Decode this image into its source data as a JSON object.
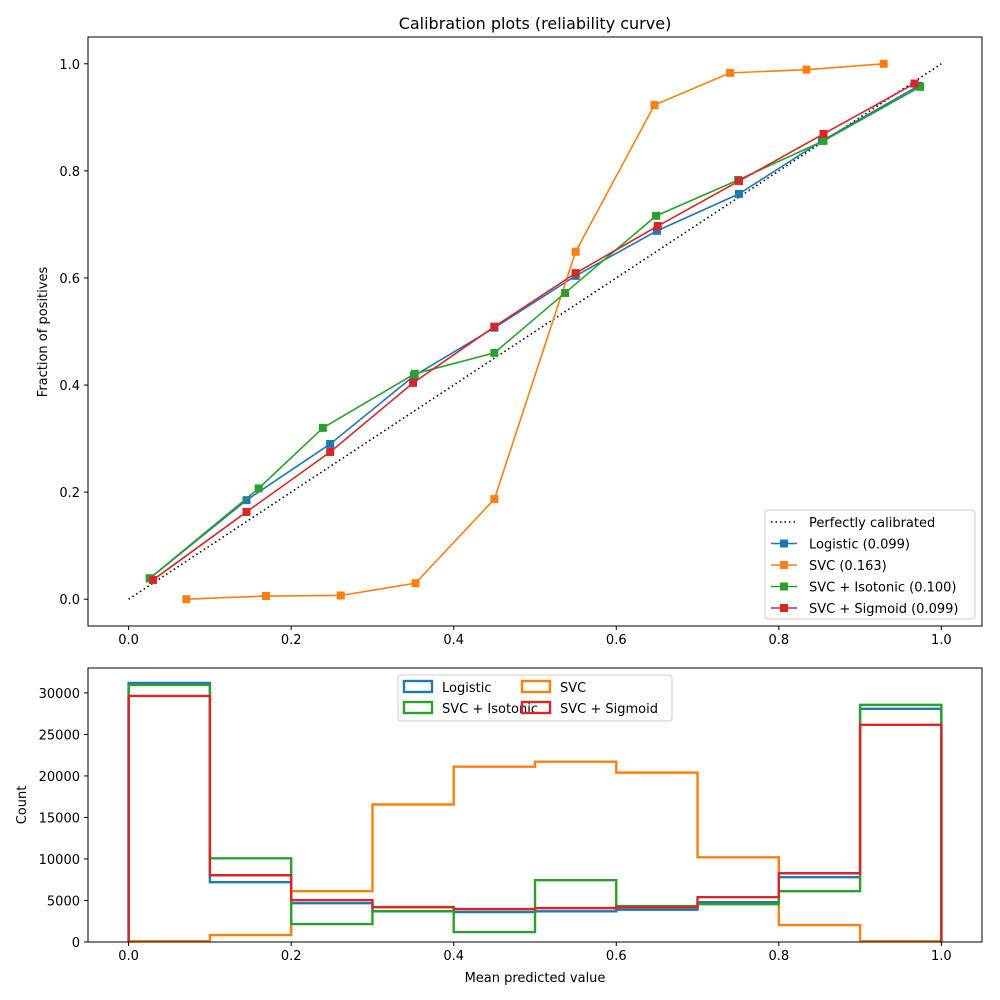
{
  "chart_data": [
    {
      "type": "line",
      "title": "Calibration plots  (reliability curve)",
      "xlabel": "",
      "ylabel": "Fraction of positives",
      "xlim": [
        -0.05,
        1.05
      ],
      "ylim": [
        -0.05,
        1.05
      ],
      "xticks": [
        "0.0",
        "0.2",
        "0.4",
        "0.6",
        "0.8",
        "1.0"
      ],
      "yticks": [
        "0.0",
        "0.2",
        "0.4",
        "0.6",
        "0.8",
        "1.0"
      ],
      "grid": false,
      "legend_position": "lower-right",
      "reference": {
        "name": "Perfectly calibrated",
        "x": [
          0,
          1
        ],
        "y": [
          0,
          1
        ],
        "color": "#000000",
        "style": "dotted"
      },
      "series": [
        {
          "name": "Logistic (0.099)",
          "color": "#1f77b4",
          "x": [
            0.026,
            0.145,
            0.248,
            0.351,
            0.45,
            0.55,
            0.65,
            0.751,
            0.853,
            0.972
          ],
          "y": [
            0.039,
            0.185,
            0.29,
            0.417,
            0.507,
            0.604,
            0.688,
            0.757,
            0.856,
            0.959
          ]
        },
        {
          "name": "SVC (0.163)",
          "color": "#ff7f0e",
          "x": [
            0.071,
            0.169,
            0.261,
            0.353,
            0.45,
            0.55,
            0.647,
            0.74,
            0.834,
            0.929
          ],
          "y": [
            0.0,
            0.006,
            0.007,
            0.03,
            0.187,
            0.649,
            0.923,
            0.983,
            0.989,
            1.0
          ]
        },
        {
          "name": "SVC + Isotonic (0.100)",
          "color": "#2ca02c",
          "x": [
            0.026,
            0.16,
            0.239,
            0.352,
            0.45,
            0.537,
            0.649,
            0.75,
            0.855,
            0.974
          ],
          "y": [
            0.039,
            0.207,
            0.32,
            0.421,
            0.46,
            0.572,
            0.716,
            0.783,
            0.856,
            0.957
          ]
        },
        {
          "name": "SVC + Sigmoid (0.099)",
          "color": "#d62728",
          "x": [
            0.03,
            0.145,
            0.248,
            0.35,
            0.45,
            0.55,
            0.651,
            0.751,
            0.855,
            0.967
          ],
          "y": [
            0.036,
            0.163,
            0.275,
            0.404,
            0.509,
            0.609,
            0.697,
            0.781,
            0.869,
            0.963
          ]
        }
      ]
    },
    {
      "type": "bar",
      "subtype": "step-histogram",
      "xlabel": "Mean predicted value",
      "ylabel": "Count",
      "xlim": [
        -0.05,
        1.05
      ],
      "ylim": [
        0,
        33000
      ],
      "xticks": [
        "0.0",
        "0.2",
        "0.4",
        "0.6",
        "0.8",
        "1.0"
      ],
      "yticks": [
        "0",
        "5000",
        "10000",
        "15000",
        "20000",
        "25000",
        "30000"
      ],
      "bin_edges": [
        0,
        0.1,
        0.2,
        0.3,
        0.4,
        0.5,
        0.6,
        0.7,
        0.8,
        0.9,
        1.0
      ],
      "grid": false,
      "legend_position": "upper-center",
      "legend_columns": 2,
      "series": [
        {
          "name": "Logistic",
          "color": "#1f77b4",
          "values": [
            31200,
            7200,
            4680,
            3700,
            3600,
            3700,
            3900,
            4800,
            7800,
            28080
          ]
        },
        {
          "name": "SVC",
          "color": "#ff7f0e",
          "values": [
            100,
            840,
            6120,
            16560,
            21120,
            21720,
            20400,
            10200,
            2040,
            100
          ]
        },
        {
          "name": "SVC + Isotonic",
          "color": "#2ca02c",
          "values": [
            30960,
            10080,
            2160,
            3720,
            1200,
            7440,
            4320,
            4560,
            6120,
            28560
          ]
        },
        {
          "name": "SVC + Sigmoid",
          "color": "#d62728",
          "values": [
            29640,
            8040,
            5040,
            4200,
            3960,
            4080,
            4200,
            5400,
            8280,
            26160
          ]
        }
      ]
    }
  ]
}
